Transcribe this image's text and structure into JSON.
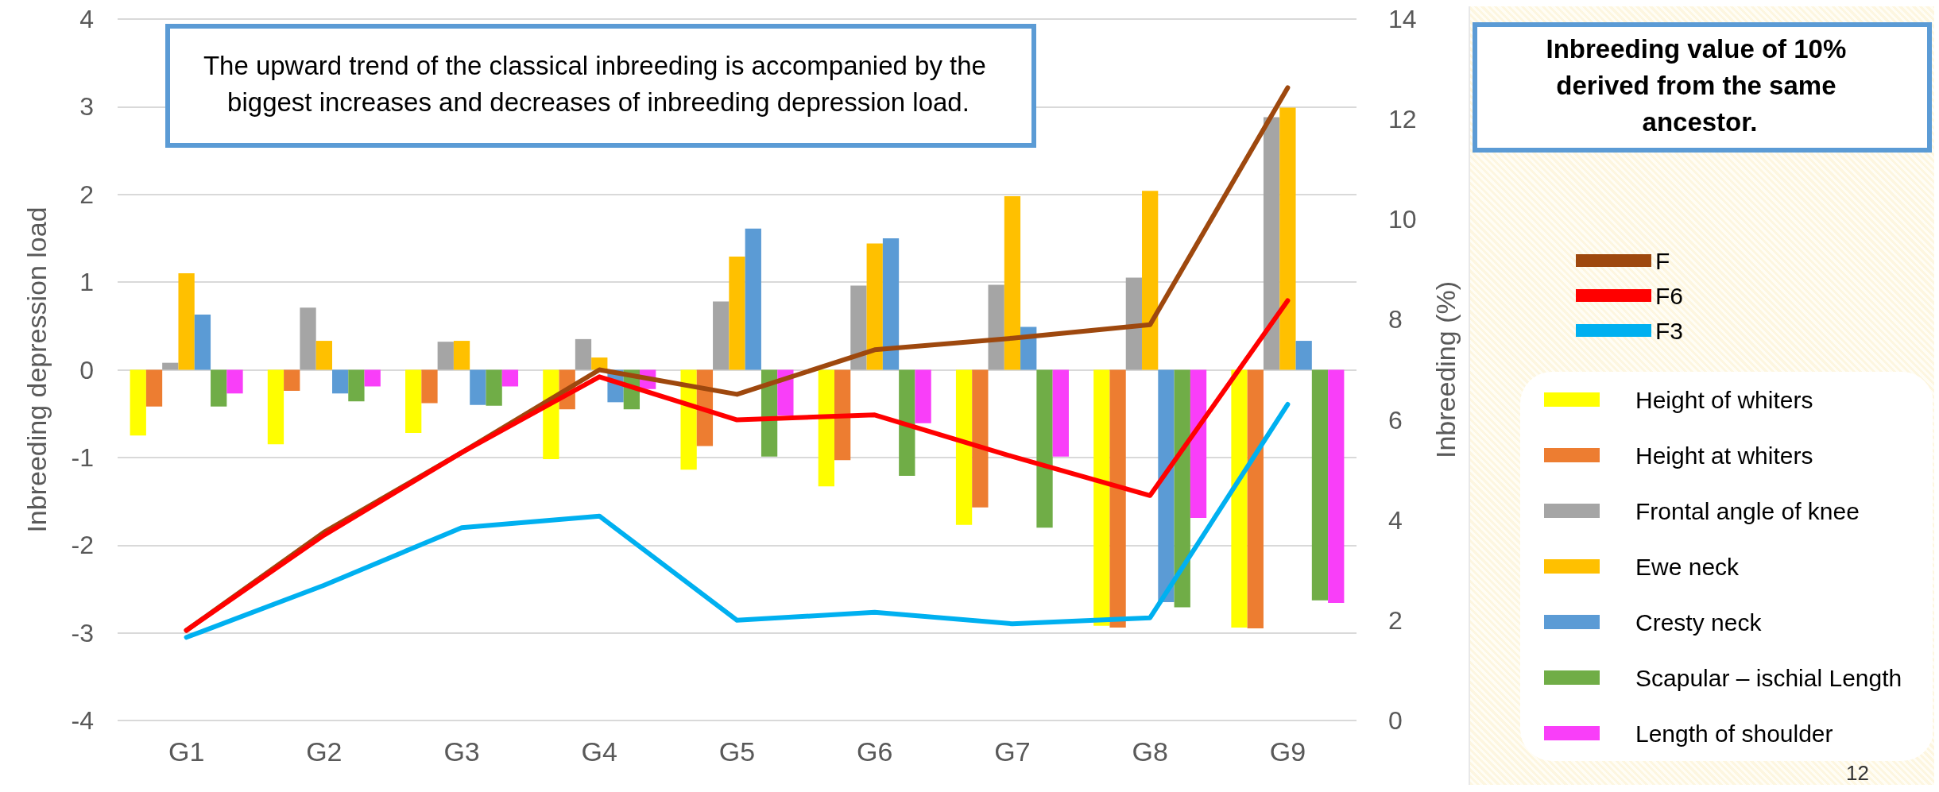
{
  "chart_data": {
    "type": "bar",
    "ylabel": "Inbreeding depression load",
    "y2label": "Inbreeding (%)",
    "categories": [
      "G1",
      "G2",
      "G3",
      "G4",
      "G5",
      "G6",
      "G7",
      "G8",
      "G9"
    ],
    "series": [
      {
        "name": "F",
        "type": "line",
        "axis": "y2",
        "color": "#9e480e",
        "values": [
          1.8,
          3.76,
          5.35,
          7.0,
          6.51,
          7.4,
          7.63,
          7.9,
          12.63
        ]
      },
      {
        "name": "F6",
        "type": "line",
        "axis": "y2",
        "color": "#ff0000",
        "values": [
          1.8,
          3.7,
          5.35,
          6.86,
          6.0,
          6.1,
          5.27,
          4.49,
          8.38
        ]
      },
      {
        "name": "F3",
        "type": "line",
        "axis": "y2",
        "color": "#00b0f0",
        "values": [
          1.66,
          2.7,
          3.85,
          4.08,
          2.0,
          2.16,
          1.93,
          2.05,
          6.31
        ]
      },
      {
        "name": "Height of whiters",
        "color": "#ffff00",
        "values": [
          -0.75,
          -0.85,
          -0.72,
          -1.02,
          -1.14,
          -1.33,
          -1.77,
          -2.92,
          -2.94
        ]
      },
      {
        "name": "Height at whiters",
        "color": "#ed7d31",
        "values": [
          -0.42,
          -0.24,
          -0.38,
          -0.45,
          -0.87,
          -1.03,
          -1.57,
          -2.94,
          -2.95
        ]
      },
      {
        "name": "Frontal angle of knee",
        "color": "#a5a5a5",
        "values": [
          0.08,
          0.71,
          0.32,
          0.35,
          0.78,
          0.96,
          0.97,
          1.05,
          2.88
        ]
      },
      {
        "name": "Ewe neck",
        "color": "#ffc000",
        "values": [
          1.1,
          0.33,
          0.33,
          0.14,
          1.29,
          1.44,
          1.98,
          2.04,
          2.99
        ]
      },
      {
        "name": "Cresty neck",
        "color": "#5b9bd5",
        "values": [
          0.63,
          -0.27,
          -0.4,
          -0.37,
          1.61,
          1.5,
          0.49,
          -2.65,
          0.33
        ]
      },
      {
        "name": "Scapular – ischial Length",
        "color": "#70ad47",
        "values": [
          -0.42,
          -0.36,
          -0.41,
          -0.45,
          -0.99,
          -1.21,
          -1.8,
          -2.71,
          -2.63
        ]
      },
      {
        "name": "Length of shoulder",
        "color": "#f93ef9",
        "values": [
          -0.27,
          -0.19,
          -0.19,
          -0.22,
          -0.52,
          -0.61,
          -0.99,
          -1.69,
          -2.66
        ]
      }
    ],
    "ylim": [
      -4,
      4
    ],
    "yticks": [
      -4,
      -3,
      -2,
      -1,
      0,
      1,
      2,
      3,
      4
    ],
    "y2lim": [
      0,
      14
    ],
    "y2ticks": [
      0,
      2,
      4,
      6,
      8,
      10,
      12,
      14
    ],
    "grid": "y",
    "legend": "right",
    "marker": "none",
    "line_style": "solid",
    "annotations": [
      "The upward trend of the classical inbreeding is accompanied by the biggest increases and decreases of inbreeding depression load.",
      "Inbreeding value of 10% derived from the same ancestor.",
      "12"
    ]
  }
}
